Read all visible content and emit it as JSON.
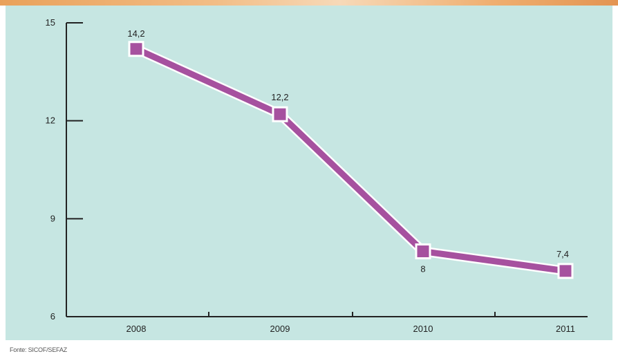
{
  "chart_data": {
    "type": "line",
    "categories": [
      "2008",
      "2009",
      "2010",
      "2011"
    ],
    "series": [
      {
        "values": [
          14.2,
          12.2,
          8,
          7.4
        ]
      }
    ],
    "data_labels": [
      "14,2",
      "12,2",
      "8",
      "7,4"
    ],
    "yticks": [
      6,
      9,
      12,
      15
    ],
    "ytick_labels": [
      "6",
      "9",
      "12",
      "15"
    ],
    "ylim": [
      6,
      15
    ],
    "grid": false,
    "colors": {
      "background": "#c6e6e2",
      "line": "#a6519f",
      "line_outline": "#ffffff",
      "axis": "#222222"
    }
  },
  "source": "Fonte: SICOF/SEFAZ"
}
